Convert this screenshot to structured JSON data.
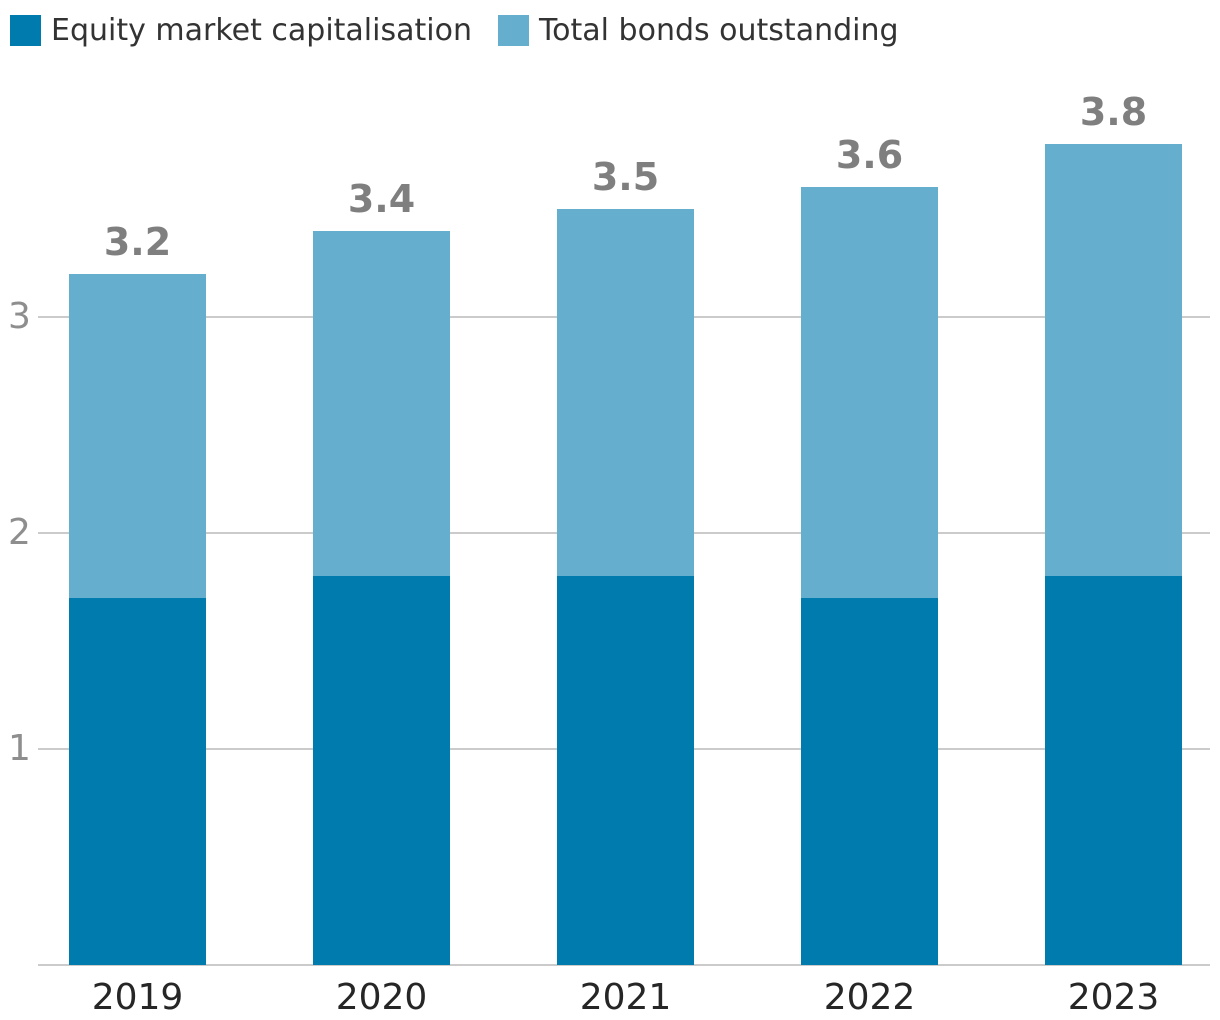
{
  "legend": {
    "items": [
      {
        "label": "Equity market capitalisation",
        "color": "#007BAD"
      },
      {
        "label": "Total bonds outstanding",
        "color": "#66AECD"
      }
    ]
  },
  "chart_data": {
    "type": "bar",
    "stacked": true,
    "categories": [
      "2019",
      "2020",
      "2021",
      "2022",
      "2023"
    ],
    "series": [
      {
        "name": "Equity market capitalisation",
        "color": "#007BAD",
        "values": [
          1.7,
          1.8,
          1.8,
          1.7,
          1.8
        ]
      },
      {
        "name": "Total bonds outstanding",
        "color": "#66AECD",
        "values": [
          1.5,
          1.6,
          1.7,
          1.9,
          2.0
        ]
      }
    ],
    "total_labels": [
      "3.2",
      "3.4",
      "3.5",
      "3.6",
      "3.8"
    ],
    "totals": [
      3.2,
      3.4,
      3.5,
      3.6,
      3.8
    ],
    "y_ticks": [
      1,
      2,
      3
    ],
    "ylim": [
      0,
      4.0
    ],
    "grid": true,
    "legend_position": "top-left",
    "colors": {
      "gridline": "#cbcbcb",
      "total_label": "#7f7f7f",
      "x_tick_label": "#262626",
      "y_tick_label": "#8e8e8e"
    }
  }
}
